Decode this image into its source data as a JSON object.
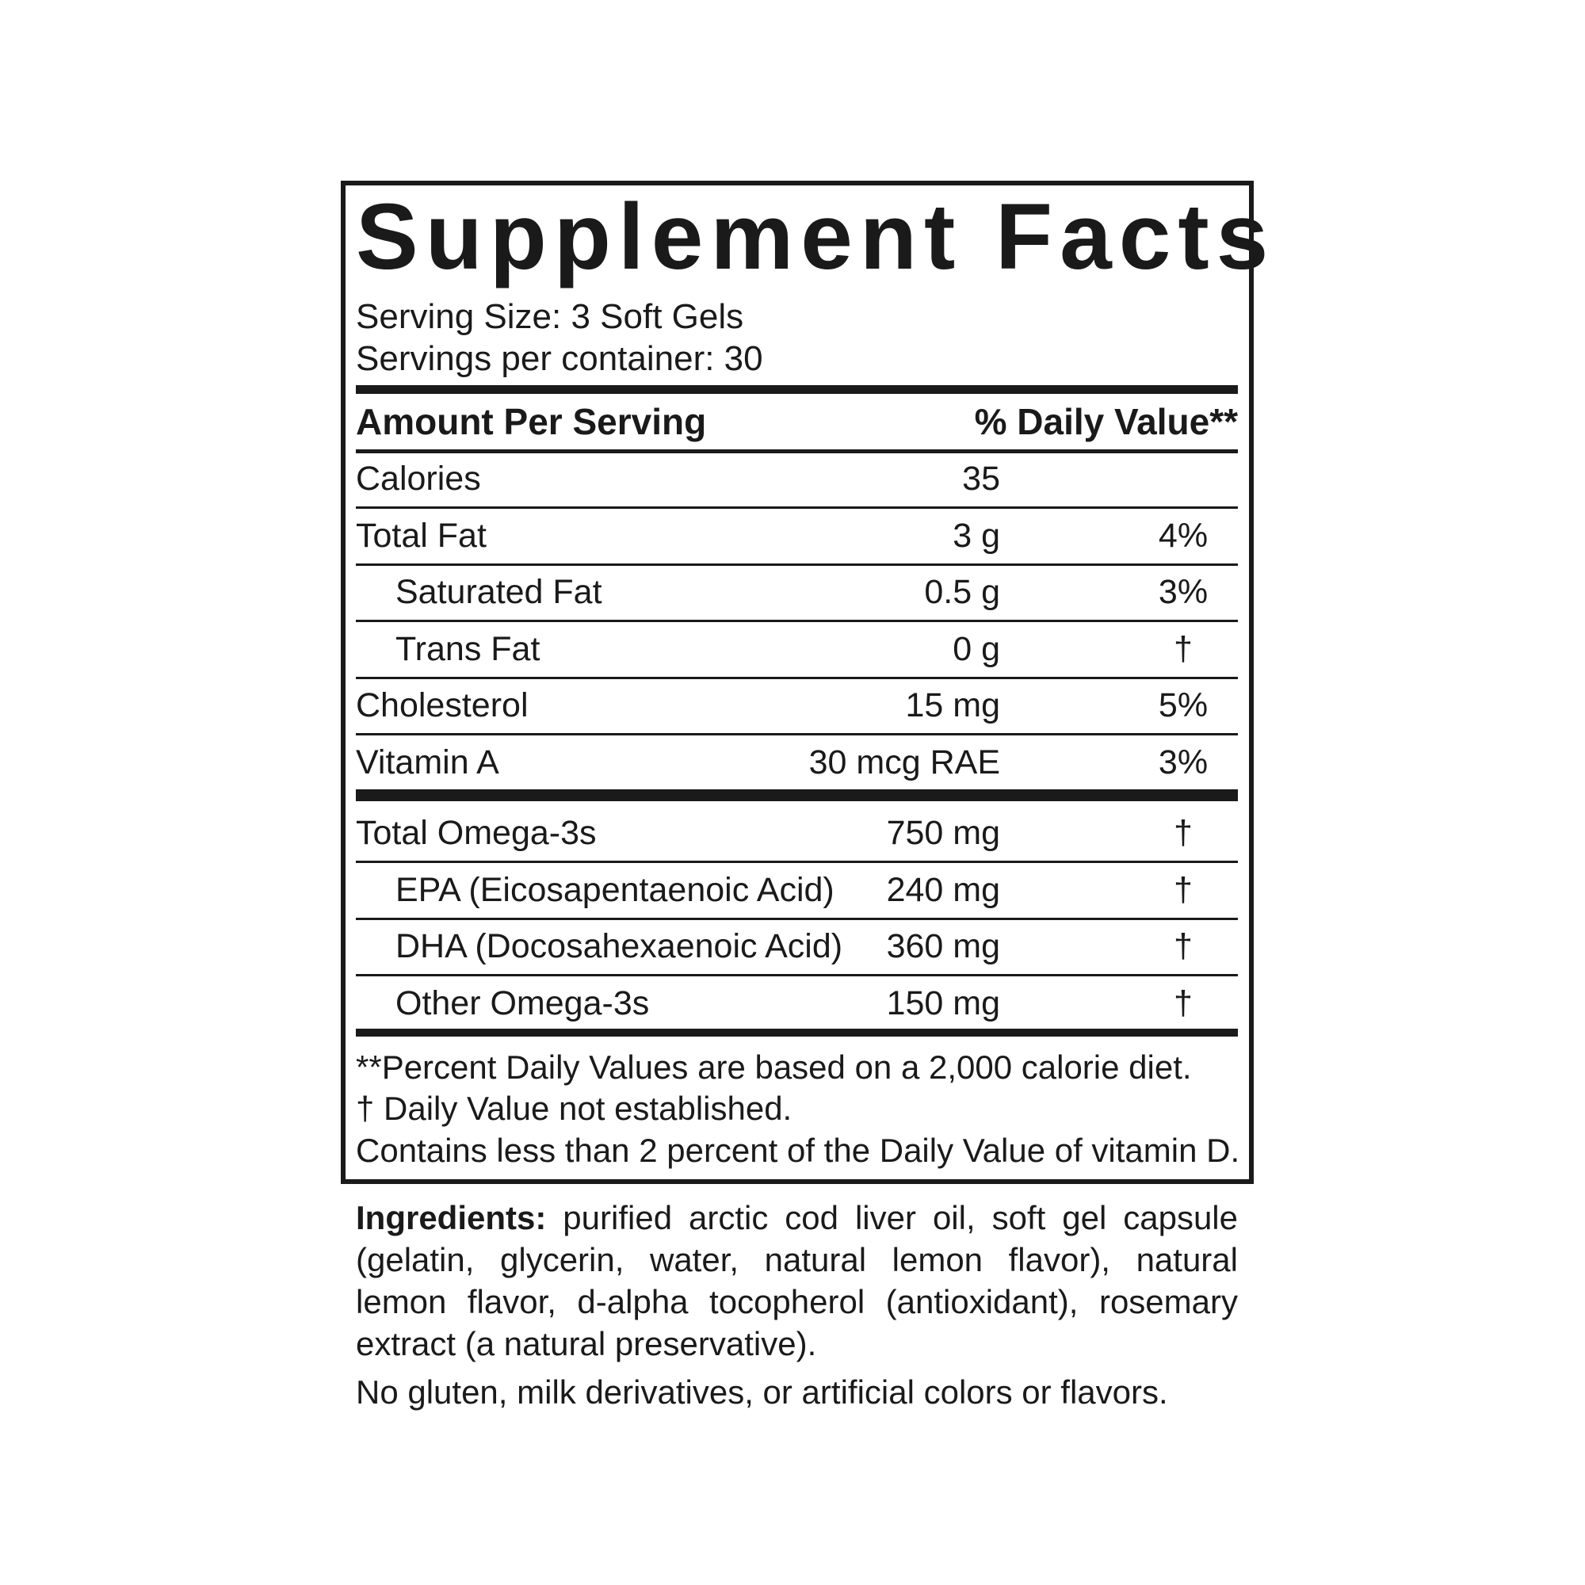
{
  "title": "Supplement Facts",
  "serving_size": "Serving Size: 3 Soft Gels",
  "servings_per_container": "Servings per container: 30",
  "header": {
    "amount": "Amount Per Serving",
    "daily_value": "% Daily Value**"
  },
  "nutrients": [
    {
      "name": "Calories",
      "amount": "35",
      "dv": ""
    },
    {
      "name": "Total Fat",
      "amount": "3 g",
      "dv": "4%"
    },
    {
      "name": "Saturated Fat",
      "amount": "0.5 g",
      "dv": "3%"
    },
    {
      "name": "Trans Fat",
      "amount": "0 g",
      "dv": "†"
    },
    {
      "name": "Cholesterol",
      "amount": "15 mg",
      "dv": "5%"
    },
    {
      "name": "Vitamin A",
      "amount": "30 mcg RAE",
      "dv": "3%"
    }
  ],
  "omega": [
    {
      "name": "Total Omega-3s",
      "amount": "750 mg",
      "dv": "†"
    },
    {
      "name": "EPA (Eicosapentaenoic Acid)",
      "amount": "240 mg",
      "dv": "†"
    },
    {
      "name": "DHA (Docosahexaenoic Acid)",
      "amount": "360 mg",
      "dv": "†"
    },
    {
      "name": "Other Omega-3s",
      "amount": "150 mg",
      "dv": "†"
    }
  ],
  "footnotes": [
    "**Percent Daily Values are based on a 2,000 calorie diet.",
    "†  Daily Value not established.",
    "Contains less than 2 percent of the Daily Value of vitamin D."
  ],
  "ingredients": {
    "label": "Ingredients:",
    "text": " purified arctic cod liver oil, soft gel capsule (gelatin, glycerin, water, natural lemon flavor), natural lemon flavor, d-alpha tocopherol (antioxidant), rosemary extract (a natural preservative)."
  },
  "allergen_statement": "No gluten, milk derivatives, or artificial colors or flavors."
}
